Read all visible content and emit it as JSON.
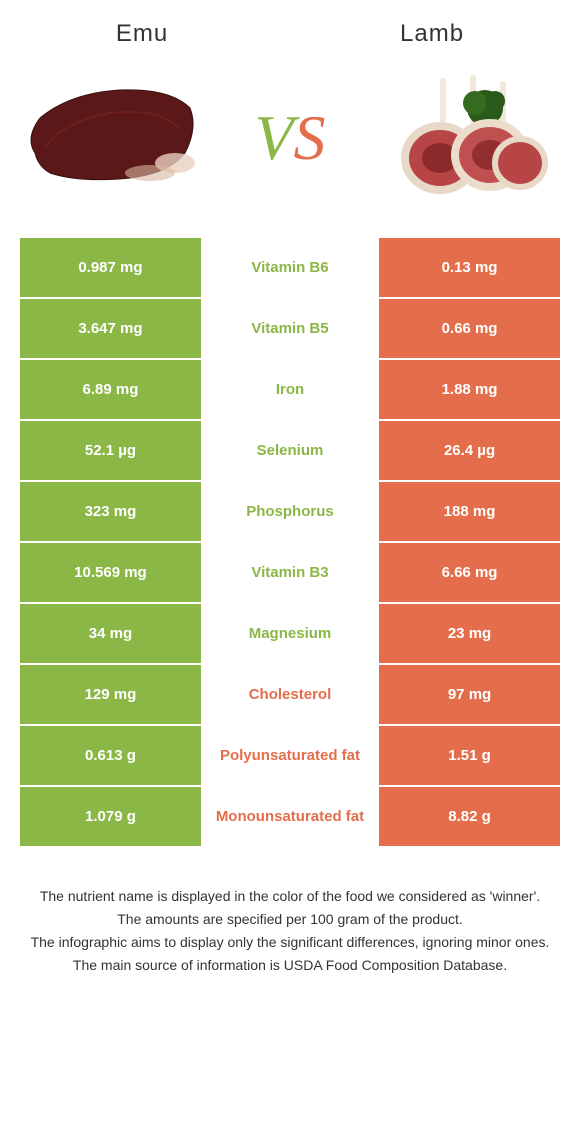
{
  "colors": {
    "green": "#8bb746",
    "orange": "#e46e4b",
    "green_text": "#8bb746",
    "orange_text": "#e46e4b"
  },
  "header": {
    "left": "Emu",
    "right": "Lamb"
  },
  "vs": {
    "v": "V",
    "s": "S"
  },
  "rows": [
    {
      "left": "0.987 mg",
      "mid": "Vitamin B6",
      "right": "0.13 mg",
      "winner": "left"
    },
    {
      "left": "3.647 mg",
      "mid": "Vitamin B5",
      "right": "0.66 mg",
      "winner": "left"
    },
    {
      "left": "6.89 mg",
      "mid": "Iron",
      "right": "1.88 mg",
      "winner": "left"
    },
    {
      "left": "52.1 µg",
      "mid": "Selenium",
      "right": "26.4 µg",
      "winner": "left"
    },
    {
      "left": "323 mg",
      "mid": "Phosphorus",
      "right": "188 mg",
      "winner": "left"
    },
    {
      "left": "10.569 mg",
      "mid": "Vitamin B3",
      "right": "6.66 mg",
      "winner": "left"
    },
    {
      "left": "34 mg",
      "mid": "Magnesium",
      "right": "23 mg",
      "winner": "left"
    },
    {
      "left": "129 mg",
      "mid": "Cholesterol",
      "right": "97 mg",
      "winner": "right"
    },
    {
      "left": "0.613 g",
      "mid": "Polyunsaturated fat",
      "right": "1.51 g",
      "winner": "right"
    },
    {
      "left": "1.079 g",
      "mid": "Monounsaturated fat",
      "right": "8.82 g",
      "winner": "right"
    }
  ],
  "footer": {
    "l1": "The nutrient name is displayed in the color of the food we considered as 'winner'.",
    "l2": "The amounts are specified per 100 gram of the product.",
    "l3": "The infographic aims to display only the significant differences, ignoring minor ones.",
    "l4": "The main source of information is USDA Food Composition Database."
  }
}
